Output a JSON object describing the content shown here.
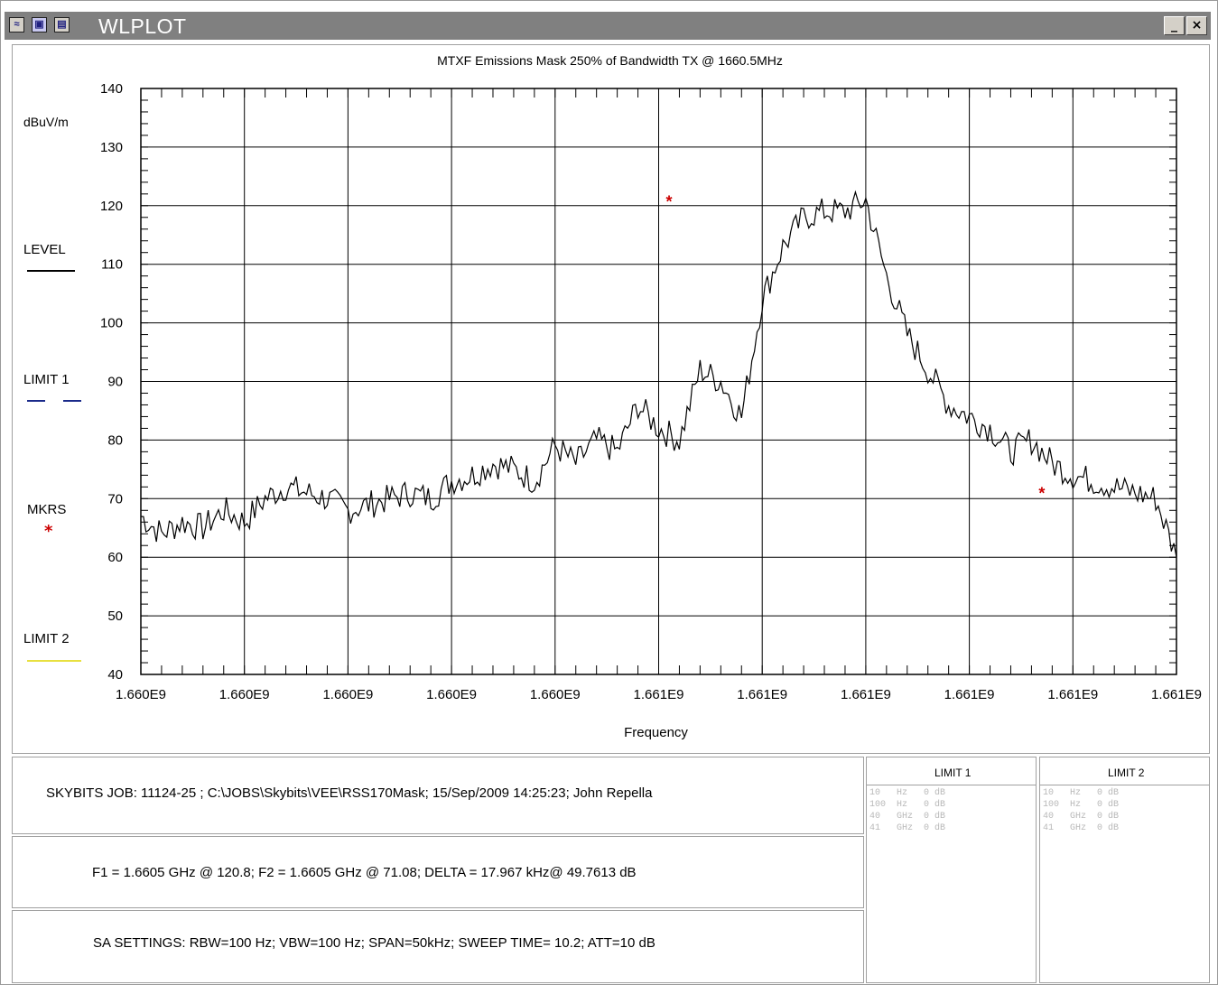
{
  "window": {
    "title": "WLPLOT",
    "minimize_label": "_",
    "close_label": "×"
  },
  "chart_data": {
    "type": "line",
    "title": "MTXF Emissions Mask 250% of Bandwidth TX @ 1660.5MHz",
    "xlabel": "Frequency",
    "ylabel": "dBuV/m",
    "ylim": [
      40,
      140
    ],
    "xlim": [
      1660475000,
      1660525000
    ],
    "x_tick_labels": [
      "1.660E9",
      "1.660E9",
      "1.660E9",
      "1.660E9",
      "1.660E9",
      "1.661E9",
      "1.661E9",
      "1.661E9",
      "1.661E9",
      "1.661E9",
      "1.661E9"
    ],
    "y_ticks": [
      40,
      50,
      60,
      70,
      80,
      90,
      100,
      110,
      120,
      130,
      140
    ],
    "grid": true,
    "legend": [
      {
        "label": "LEVEL",
        "color": "#000000",
        "style": "solid"
      },
      {
        "label": "LIMIT 1",
        "color": "#1a2a8a",
        "style": "dashed"
      },
      {
        "label": "MKRS",
        "color": "#cc0000",
        "style": "marker"
      },
      {
        "label": "LIMIT 2",
        "color": "#e8e040",
        "style": "solid"
      }
    ],
    "series": [
      {
        "name": "LEVEL",
        "color": "#000000",
        "x": [
          1660475000,
          1660476000,
          1660477000,
          1660478000,
          1660479000,
          1660480000,
          1660481000,
          1660482000,
          1660483000,
          1660484000,
          1660485000,
          1660486000,
          1660487000,
          1660488000,
          1660489000,
          1660490000,
          1660491000,
          1660492000,
          1660493000,
          1660494000,
          1660495000,
          1660496000,
          1660497000,
          1660498000,
          1660499000,
          1660500000,
          1660501000,
          1660502000,
          1660503000,
          1660504000,
          1660505000,
          1660506000,
          1660507000,
          1660508000,
          1660509000,
          1660510000,
          1660511000,
          1660512000,
          1660513000,
          1660514000,
          1660515000,
          1660516000,
          1660517000,
          1660518000,
          1660519000,
          1660520000,
          1660521000,
          1660522000,
          1660523000,
          1660524000,
          1660525000
        ],
        "values": [
          67,
          64,
          66,
          65,
          68,
          66,
          70,
          72,
          71,
          70,
          68,
          69,
          70,
          71,
          70,
          73,
          74,
          76,
          75,
          73,
          79,
          76,
          80,
          78,
          86,
          82,
          80,
          92,
          90,
          84,
          104,
          113,
          118,
          119,
          119,
          121,
          108,
          98,
          92,
          86,
          84,
          82,
          78,
          80,
          76,
          74,
          73,
          72,
          71,
          70,
          60
        ]
      }
    ],
    "markers": [
      {
        "x": 1660500500,
        "y": 120.8,
        "color": "#cc0000"
      },
      {
        "x": 1660518500,
        "y": 71.08,
        "color": "#cc0000"
      }
    ]
  },
  "info": {
    "job_line": "SKYBITS  JOB: 11124-25   ;  C:\\JOBS\\Skybits\\VEE\\RSS170Mask;    15/Sep/2009 14:25:23; John Repella",
    "marker_line": "F1 = 1.6605 GHz @ 120.8;   F2 = 1.6605 GHz @ 71.08;   DELTA = 17.967 kHz@ 49.7613 dB",
    "sa_line": "SA SETTINGS: RBW=100 Hz; VBW=100 Hz; SPAN=50kHz; SWEEP TIME= 10.2; ATT=10 dB"
  },
  "limit1": {
    "title": "LIMIT 1",
    "rows": [
      "10   Hz   0 dB",
      "100  Hz   0 dB",
      "40   GHz  0 dB",
      "41   GHz  0 dB"
    ]
  },
  "limit2": {
    "title": "LIMIT 2",
    "rows": [
      "10   Hz   0 dB",
      "100  Hz   0 dB",
      "40   GHz  0 dB",
      "41   GHz  0 dB"
    ]
  }
}
